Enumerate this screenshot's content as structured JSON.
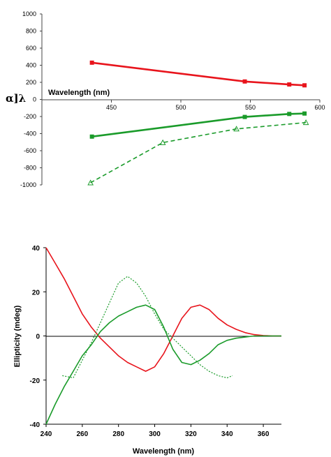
{
  "chart_data": [
    {
      "type": "line",
      "xlabel": "Wavelength (nm)",
      "ylabel": "α]λ",
      "xlim": [
        400,
        600
      ],
      "ylim": [
        -1000,
        1000
      ],
      "xticks": [
        450,
        500,
        550,
        600
      ],
      "yticks": [
        1000,
        800,
        600,
        400,
        200,
        0,
        -200,
        -400,
        -600,
        -800,
        -1000
      ],
      "grid": false,
      "series": [
        {
          "color": "#e8141c",
          "style": "solid",
          "marker": "square",
          "x": [
            436,
            546,
            578,
            589
          ],
          "y": [
            430,
            210,
            175,
            165
          ]
        },
        {
          "color": "#1a9b2a",
          "style": "solid",
          "marker": "square",
          "x": [
            436,
            546,
            578,
            589
          ],
          "y": [
            -435,
            -205,
            -170,
            -165
          ]
        },
        {
          "color": "#1a9b2a",
          "style": "dashed",
          "marker": "triangle",
          "x": [
            435,
            487,
            540,
            590
          ],
          "y": [
            -975,
            -505,
            -345,
            -270
          ]
        }
      ]
    },
    {
      "type": "line",
      "xlabel": "Wavelength (nm)",
      "ylabel": "Ellipticity (mdeg)",
      "xlim": [
        240,
        370
      ],
      "ylim": [
        -40,
        40
      ],
      "xticks": [
        240,
        260,
        280,
        300,
        320,
        340,
        360
      ],
      "yticks": [
        40,
        20,
        0,
        -20,
        -40
      ],
      "grid": false,
      "series": [
        {
          "color": "#e8141c",
          "style": "solid",
          "x": [
            240,
            245,
            250,
            255,
            260,
            265,
            270,
            275,
            280,
            285,
            290,
            295,
            300,
            305,
            310,
            315,
            320,
            325,
            330,
            335,
            340,
            345,
            350,
            355,
            360,
            365,
            370
          ],
          "y": [
            40,
            33,
            26,
            18,
            10,
            4,
            -1,
            -5,
            -9,
            -12,
            -14,
            -16,
            -14,
            -8,
            0,
            8,
            13,
            14,
            12,
            8,
            5,
            3,
            1.5,
            0.6,
            0.2,
            0,
            0
          ]
        },
        {
          "color": "#1a9b2a",
          "style": "solid",
          "x": [
            240,
            245,
            250,
            255,
            260,
            265,
            270,
            275,
            280,
            285,
            290,
            295,
            300,
            305,
            310,
            315,
            320,
            325,
            330,
            335,
            340,
            345,
            350,
            355,
            360,
            365,
            370
          ],
          "y": [
            -40,
            -31,
            -23,
            -16,
            -9,
            -4,
            2,
            6,
            9,
            11,
            13,
            14,
            12,
            4,
            -6,
            -12,
            -13,
            -11,
            -8,
            -4,
            -2,
            -1,
            -0.5,
            0,
            0,
            0,
            0
          ]
        },
        {
          "color": "#1a9b2a",
          "style": "dotted",
          "x": [
            249,
            255,
            260,
            265,
            270,
            275,
            280,
            285,
            290,
            295,
            300,
            305,
            310,
            315,
            320,
            325,
            330,
            335,
            340,
            343
          ],
          "y": [
            -18,
            -19,
            -11,
            -3,
            6,
            15,
            24,
            27,
            24,
            18,
            10,
            3,
            -1,
            -5,
            -9,
            -13,
            -16,
            -18,
            -19,
            -18
          ]
        }
      ]
    }
  ]
}
